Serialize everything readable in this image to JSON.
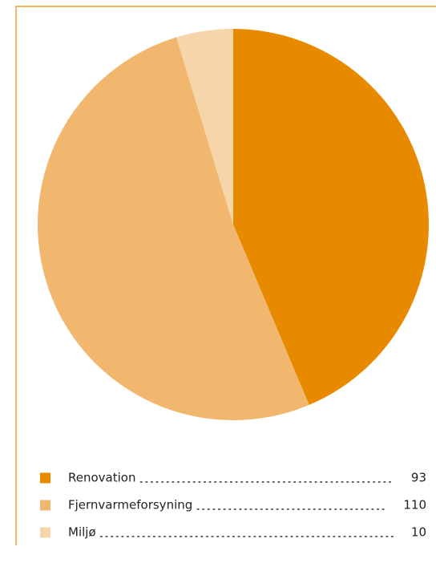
{
  "chart_data": {
    "type": "pie",
    "categories": [
      "Renovation",
      "Fjernvarmeforsyning",
      "Miljø"
    ],
    "values": [
      93,
      110,
      10
    ],
    "colors": [
      "#e88a00",
      "#f2b76e",
      "#f7d5aa"
    ]
  }
}
